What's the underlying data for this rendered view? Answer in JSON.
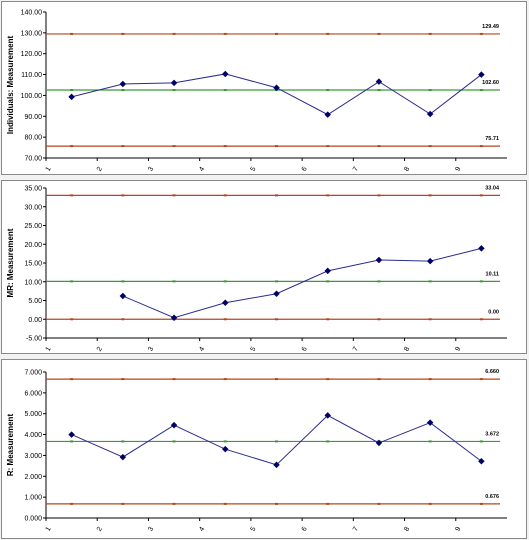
{
  "chart_data": [
    {
      "type": "line",
      "ylabel": "Individuals: Measurement",
      "ylim": [
        70,
        140
      ],
      "yticks": [
        "70.00",
        "80.00",
        "90.00",
        "100.00",
        "110.00",
        "120.00",
        "130.00",
        "140.00"
      ],
      "categories": [
        "1",
        "2",
        "3",
        "4",
        "5",
        "6",
        "7",
        "8",
        "9"
      ],
      "series": [
        {
          "values": [
            99.3,
            105.5,
            106.0,
            110.3,
            103.7,
            90.8,
            106.6,
            91.1,
            110.0
          ]
        }
      ],
      "control_lines": [
        {
          "value": 129.49,
          "label": "129.49",
          "color": "#b5461b"
        },
        {
          "value": 102.6,
          "label": "102.60",
          "color": "#3a9a3a"
        },
        {
          "value": 75.71,
          "label": "75.71",
          "color": "#b5461b"
        }
      ]
    },
    {
      "type": "line",
      "ylabel": "MR: Measurement",
      "ylim": [
        -5,
        35
      ],
      "yticks": [
        "-5.00",
        "0.00",
        "5.00",
        "10.00",
        "15.00",
        "20.00",
        "25.00",
        "30.00",
        "35.00"
      ],
      "categories": [
        "1",
        "2",
        "3",
        "4",
        "5",
        "6",
        "7",
        "8",
        "9"
      ],
      "series": [
        {
          "values": [
            null,
            6.2,
            0.4,
            4.4,
            6.8,
            12.9,
            15.8,
            15.5,
            18.9
          ]
        }
      ],
      "control_lines": [
        {
          "value": 33.04,
          "label": "33.04",
          "color": "#b5461b"
        },
        {
          "value": 10.11,
          "label": "10.11",
          "color": "#3a9a3a"
        },
        {
          "value": 0.0,
          "label": "0.00",
          "color": "#b5461b"
        }
      ]
    },
    {
      "type": "line",
      "ylabel": "R: Measurement",
      "ylim": [
        0,
        7
      ],
      "yticks": [
        "0.000",
        "1.000",
        "2.000",
        "3.000",
        "4.000",
        "5.000",
        "6.000",
        "7.000"
      ],
      "categories": [
        "1",
        "2",
        "3",
        "4",
        "5",
        "6",
        "7",
        "8",
        "9"
      ],
      "series": [
        {
          "values": [
            4.0,
            2.92,
            4.45,
            3.3,
            2.55,
            4.92,
            3.6,
            4.57,
            2.72
          ]
        }
      ],
      "control_lines": [
        {
          "value": 6.66,
          "label": "6.660",
          "color": "#b5461b"
        },
        {
          "value": 3.672,
          "label": "3.672",
          "color": "#3a9a3a"
        },
        {
          "value": 0.676,
          "label": "0.676",
          "color": "#b5461b"
        }
      ]
    }
  ],
  "colors": {
    "series": "#2b2b8f",
    "marker": "#000066"
  }
}
